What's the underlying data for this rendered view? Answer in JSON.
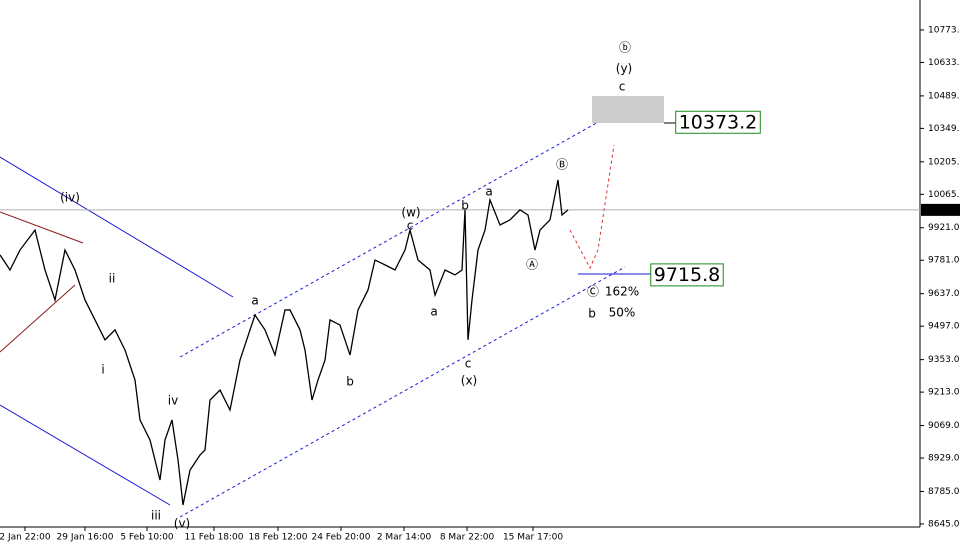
{
  "chart_data": {
    "type": "line",
    "x": [
      0,
      10,
      20,
      35,
      45,
      55,
      65,
      75,
      85,
      95,
      105,
      115,
      125,
      135,
      140,
      150,
      160,
      165,
      172,
      178,
      183,
      190,
      200,
      205,
      210,
      220,
      230,
      240,
      250,
      255,
      265,
      275,
      285,
      290,
      300,
      305,
      312,
      318,
      325,
      330,
      340,
      350,
      358,
      368,
      375,
      385,
      395,
      405,
      410,
      418,
      430,
      435,
      445,
      455,
      462,
      465,
      468,
      472,
      478,
      485,
      490,
      500,
      510,
      520,
      528,
      535,
      540,
      550,
      558,
      562,
      568
    ],
    "series": [
      {
        "color": "#000000",
        "values": [
          9804,
          9739,
          9825,
          9911,
          9739,
          9610,
          9825,
          9739,
          9610,
          9524,
          9438,
          9481,
          9394,
          9265,
          9093,
          9007,
          8834,
          9007,
          9093,
          8921,
          8727,
          8877,
          8942,
          8964,
          9179,
          9222,
          9136,
          9351,
          9481,
          9545,
          9481,
          9373,
          9567,
          9567,
          9481,
          9394,
          9179,
          9265,
          9351,
          9524,
          9502,
          9373,
          9567,
          9653,
          9782,
          9761,
          9739,
          9825,
          9911,
          9782,
          9739,
          9631,
          9739,
          9718,
          9739,
          9998,
          9438,
          9610,
          9825,
          9911,
          10041,
          9933,
          9955,
          9998,
          9976,
          9825,
          9911,
          9955,
          10127,
          9976,
          9998
        ]
      }
    ],
    "xlim": [
      0,
      920
    ],
    "xticks": [
      {
        "value": 25,
        "label": "2 Jan 22:00"
      },
      {
        "value": 85,
        "label": "29 Jan 16:00"
      },
      {
        "value": 147,
        "label": "5 Feb 10:00"
      },
      {
        "value": 214,
        "label": "11 Feb 18:00"
      },
      {
        "value": 278,
        "label": "18 Feb 12:00"
      },
      {
        "value": 341,
        "label": "24 Feb 20:00"
      },
      {
        "value": 404,
        "label": "2 Mar 14:00"
      },
      {
        "value": 467,
        "label": "8 Mar 22:00"
      },
      {
        "value": 533,
        "label": "15 Mar 17:00"
      }
    ],
    "ylim": [
      8632,
      10902
    ],
    "yticks": [
      {
        "value": 8645,
        "label": "8645.0"
      },
      {
        "value": 8785,
        "label": "8785.0"
      },
      {
        "value": 8929,
        "label": "8929.0"
      },
      {
        "value": 9069,
        "label": "9069.0"
      },
      {
        "value": 9213,
        "label": "9213.0"
      },
      {
        "value": 9353,
        "label": "9353.0"
      },
      {
        "value": 9497,
        "label": "9497.0"
      },
      {
        "value": 9637,
        "label": "9637.0"
      },
      {
        "value": 9781,
        "label": "9781.0"
      },
      {
        "value": 9921,
        "label": "9921.0"
      },
      {
        "value": 10065,
        "label": "10065.0"
      },
      {
        "value": 10205,
        "label": "10205.0"
      },
      {
        "value": 10349,
        "label": "10349.0"
      },
      {
        "value": 10489,
        "label": "10489.0"
      },
      {
        "value": 10633,
        "label": "10633.0"
      },
      {
        "value": 10773,
        "label": "10773.0"
      }
    ],
    "last_price": {
      "value": 9998,
      "label": "9998.0"
    },
    "targets": [
      10373.2,
      9715.8
    ],
    "annotations": [
      {
        "text": "(iv)",
        "color": "#2e8b2e",
        "x": 70,
        "y": 10049
      },
      {
        "text": "ii",
        "color": "#1a1ad6",
        "x": 112,
        "y": 9700
      },
      {
        "text": "i",
        "color": "#1a1ad6",
        "x": 103,
        "y": 9308
      },
      {
        "text": "iv",
        "color": "#1a1ad6",
        "x": 173,
        "y": 9175
      },
      {
        "text": "iii",
        "color": "#1a1ad6",
        "x": 156,
        "y": 8679
      },
      {
        "text": "(v)",
        "color": "#2e8b2e",
        "x": 182,
        "y": 8645
      },
      {
        "text": "a",
        "color": "#1a1ad6",
        "x": 255,
        "y": 9606
      },
      {
        "text": "b",
        "color": "#1a1ad6",
        "x": 350,
        "y": 9257
      },
      {
        "text": "(w)",
        "color": "#2e8b2e",
        "x": 411,
        "y": 9985
      },
      {
        "text": "c",
        "color": "#1a1ad6",
        "x": 410,
        "y": 9929
      },
      {
        "text": "a",
        "color": "#1a1ad6",
        "x": 434,
        "y": 9558
      },
      {
        "text": "b",
        "color": "#1a1ad6",
        "x": 465,
        "y": 10015
      },
      {
        "text": "c",
        "color": "#1a1ad6",
        "x": 468,
        "y": 9334
      },
      {
        "text": "(x)",
        "color": "#2e8b2e",
        "x": 469,
        "y": 9261
      },
      {
        "text": "a",
        "color": "#1a1ad6",
        "x": 489,
        "y": 10075
      },
      {
        "text": "Ⓐ",
        "color": "#e03030",
        "x": 532,
        "y": 9761
      },
      {
        "text": "Ⓑ",
        "color": "#e03030",
        "x": 562,
        "y": 10191
      },
      {
        "text": "Ⓒ",
        "color": "#e03030",
        "x": 593,
        "y": 9644
      },
      {
        "text": "162%",
        "color": "#e03030",
        "x": 622,
        "y": 9644
      },
      {
        "text": "b",
        "color": "#1a1ad6",
        "x": 592,
        "y": 9549
      },
      {
        "text": "50%",
        "color": "#1a1ad6",
        "x": 622,
        "y": 9554
      },
      {
        "text": "ⓑ",
        "color": "#e03030",
        "x": 625,
        "y": 10695
      },
      {
        "text": "(y)",
        "color": "#2e8b2e",
        "x": 624,
        "y": 10605
      },
      {
        "text": "c",
        "color": "#1a1ad6",
        "x": 622,
        "y": 10527
      }
    ]
  }
}
